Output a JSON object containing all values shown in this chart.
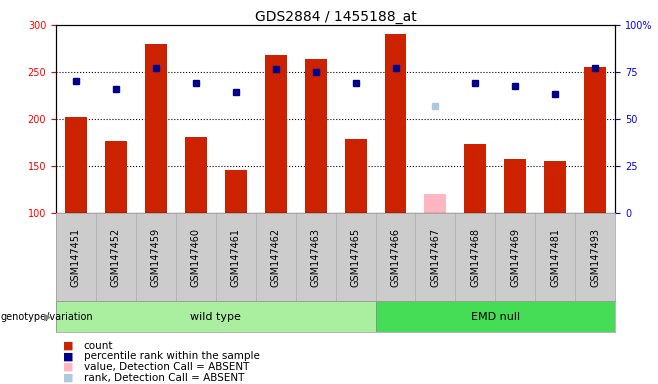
{
  "title": "GDS2884 / 1455188_at",
  "samples": [
    "GSM147451",
    "GSM147452",
    "GSM147459",
    "GSM147460",
    "GSM147461",
    "GSM147462",
    "GSM147463",
    "GSM147465",
    "GSM147466",
    "GSM147467",
    "GSM147468",
    "GSM147469",
    "GSM147481",
    "GSM147493"
  ],
  "counts": [
    202,
    177,
    280,
    181,
    146,
    268,
    264,
    179,
    290,
    null,
    173,
    158,
    155,
    255
  ],
  "absent_count": [
    null,
    null,
    null,
    null,
    null,
    null,
    null,
    null,
    null,
    120,
    null,
    null,
    null,
    null
  ],
  "ranks": [
    240,
    232,
    254,
    238,
    229,
    253,
    250,
    238,
    254,
    null,
    238,
    235,
    227,
    254
  ],
  "absent_rank": [
    null,
    null,
    null,
    null,
    null,
    null,
    null,
    null,
    null,
    214,
    null,
    null,
    null,
    null
  ],
  "wild_type_indices": [
    0,
    1,
    2,
    3,
    4,
    5,
    6,
    7
  ],
  "emd_null_indices": [
    8,
    9,
    10,
    11,
    12,
    13
  ],
  "ylim_left": [
    100,
    300
  ],
  "ylim_right": [
    0,
    100
  ],
  "yticks_left": [
    100,
    150,
    200,
    250,
    300
  ],
  "yticks_right": [
    0,
    25,
    50,
    75,
    100
  ],
  "bar_color": "#CC2200",
  "bar_absent_color": "#FFB6C1",
  "rank_color": "#00008B",
  "rank_absent_color": "#AFC8DC",
  "wild_type_color": "#AAEEA0",
  "emd_null_color": "#44DD55",
  "bg_color": "#CCCCCC",
  "bar_width": 0.55,
  "title_fontsize": 10,
  "tick_fontsize": 7,
  "label_fontsize": 7,
  "legend_fontsize": 7.5
}
